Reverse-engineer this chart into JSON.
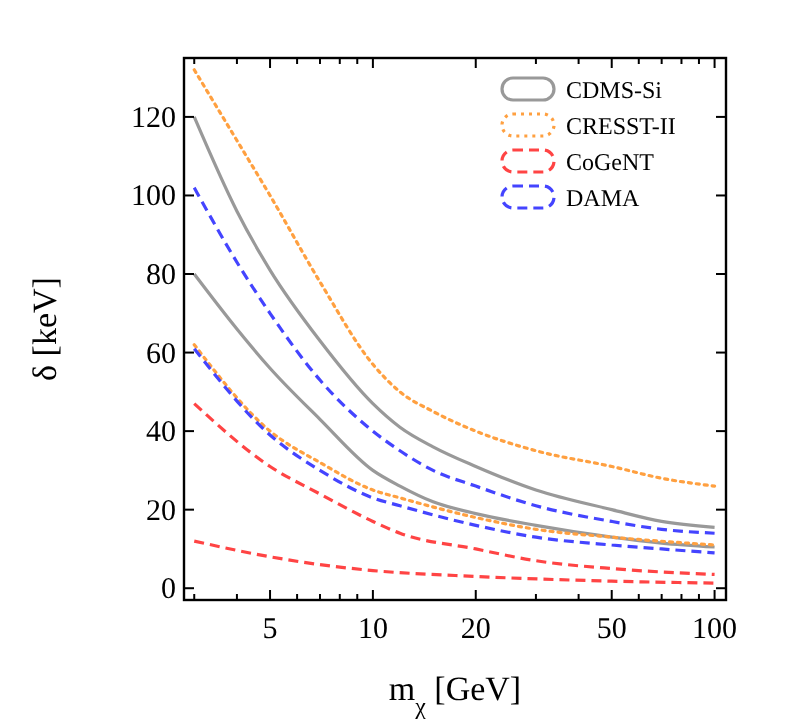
{
  "chart_data": {
    "type": "line",
    "xlabel": "m$_{χ}$ [GeV]",
    "ylabel": "δ [keV]",
    "log": "x",
    "xlim": [
      2.8,
      108
    ],
    "ylim": [
      -3,
      135
    ],
    "xticks": [
      {
        "value": 3,
        "label": null
      },
      {
        "value": 4,
        "label": null
      },
      5,
      {
        "value": 6,
        "label": null
      },
      {
        "value": 7,
        "label": null
      },
      {
        "value": 8,
        "label": null
      },
      {
        "value": 9,
        "label": null
      },
      10,
      20,
      {
        "value": 30,
        "label": null
      },
      {
        "value": 40,
        "label": null
      },
      50,
      {
        "value": 60,
        "label": null
      },
      {
        "value": 70,
        "label": null
      },
      {
        "value": 80,
        "label": null
      },
      {
        "value": 90,
        "label": null
      },
      100
    ],
    "yticks": [
      0,
      20,
      40,
      60,
      80,
      100,
      120
    ],
    "grid": false,
    "legend": "top right",
    "marker": "none",
    "series": [
      {
        "name": "CDMS-Si",
        "color": "#999999",
        "line_style": "solid",
        "x": [
          3,
          4,
          5,
          7,
          10,
          12,
          15,
          20,
          30,
          50,
          70,
          100
        ],
        "values": [
          120,
          96,
          81,
          63,
          47,
          41,
          36,
          31,
          25,
          20,
          17,
          15.5
        ]
      },
      {
        "color": "#999999",
        "line_style": "solid",
        "x": [
          3,
          4,
          5,
          7,
          10,
          12,
          15,
          20,
          30,
          50,
          70,
          100
        ],
        "values": [
          80,
          66,
          56,
          43,
          30,
          26,
          22,
          19,
          16,
          13,
          11.5,
          10.5
        ]
      },
      {
        "name": "CRESST-II",
        "color": "#ffa040",
        "line_style": "dotted",
        "x": [
          3,
          4,
          5,
          7,
          10,
          12,
          15,
          20,
          30,
          50,
          70,
          100
        ],
        "values": [
          132,
          114,
          100,
          78,
          57,
          50,
          45,
          40,
          35,
          31,
          28,
          26
        ]
      },
      {
        "color": "#ffa040",
        "line_style": "dotted",
        "x": [
          3,
          5,
          7,
          10,
          12,
          20,
          30,
          50,
          100
        ],
        "values": [
          62,
          40,
          32,
          25,
          23,
          18,
          15,
          13,
          11
        ]
      },
      {
        "name": "CoGeNT",
        "color": "#ff4444",
        "line_style": "dashed",
        "x": [
          3,
          5,
          7,
          10,
          12,
          20,
          30,
          50,
          100
        ],
        "values": [
          47,
          31,
          24,
          17,
          14,
          10,
          7,
          5,
          3.5
        ]
      },
      {
        "color": "#ff4444",
        "line_style": "dashed",
        "x": [
          3,
          5,
          7,
          10,
          20,
          50,
          100
        ],
        "values": [
          12,
          8,
          6,
          4.5,
          3,
          1.8,
          1.3
        ]
      },
      {
        "name": "DAMA",
        "color": "#4444ff",
        "line_style": "dashed",
        "x": [
          3,
          4,
          5,
          7,
          10,
          12,
          15,
          20,
          30,
          50,
          70,
          100
        ],
        "values": [
          102,
          83,
          70,
          53,
          40,
          35,
          30,
          26,
          21,
          17,
          15,
          14
        ]
      },
      {
        "color": "#4444ff",
        "line_style": "dashed",
        "x": [
          3,
          5,
          7,
          10,
          12,
          20,
          30,
          50,
          70,
          100
        ],
        "values": [
          61,
          39,
          30,
          23,
          21,
          16,
          13,
          11,
          10,
          9
        ]
      }
    ]
  }
}
